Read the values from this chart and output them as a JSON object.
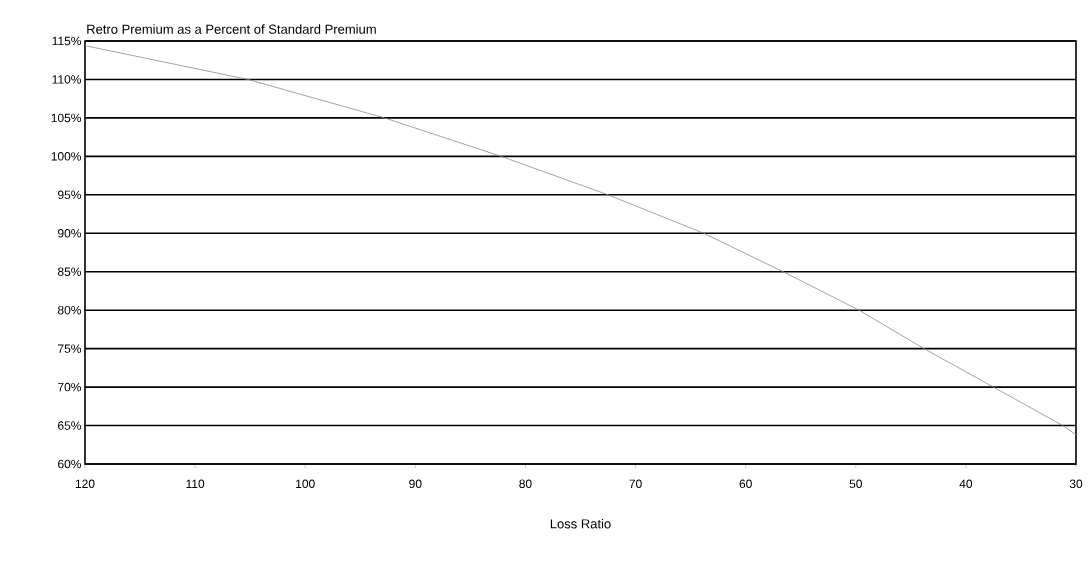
{
  "chart_data": {
    "type": "line",
    "title": "Retro Premium as a Percent of Standard Premium",
    "xlabel": "Loss Ratio",
    "x": [
      120,
      105.2,
      92.8,
      82.2,
      72.5,
      63.8,
      56.6,
      49.7,
      43.8,
      37.5,
      31.2,
      30
    ],
    "series": [
      {
        "color": "#8c8c8c",
        "values": [
          114.4,
          110,
          105,
          100,
          95,
          90,
          85,
          80,
          75,
          70,
          65,
          63.8
        ]
      }
    ],
    "xlim": [
      120,
      30
    ],
    "xticks": [
      120,
      110,
      100,
      90,
      80,
      70,
      60,
      50,
      40,
      30
    ],
    "ylim": [
      60,
      115
    ],
    "yticks": [
      {
        "value": 60,
        "label": "60%"
      },
      {
        "value": 65,
        "label": "65%"
      },
      {
        "value": 70,
        "label": "70%"
      },
      {
        "value": 75,
        "label": "75%"
      },
      {
        "value": 80,
        "label": "80%"
      },
      {
        "value": 85,
        "label": "85%"
      },
      {
        "value": 90,
        "label": "90%"
      },
      {
        "value": 95,
        "label": "95%"
      },
      {
        "value": 100,
        "label": "100%"
      },
      {
        "value": 105,
        "label": "105%"
      },
      {
        "value": 110,
        "label": "110%"
      },
      {
        "value": 115,
        "label": "115%"
      }
    ],
    "grid": "y",
    "marker": "none",
    "line_style": "solid"
  }
}
